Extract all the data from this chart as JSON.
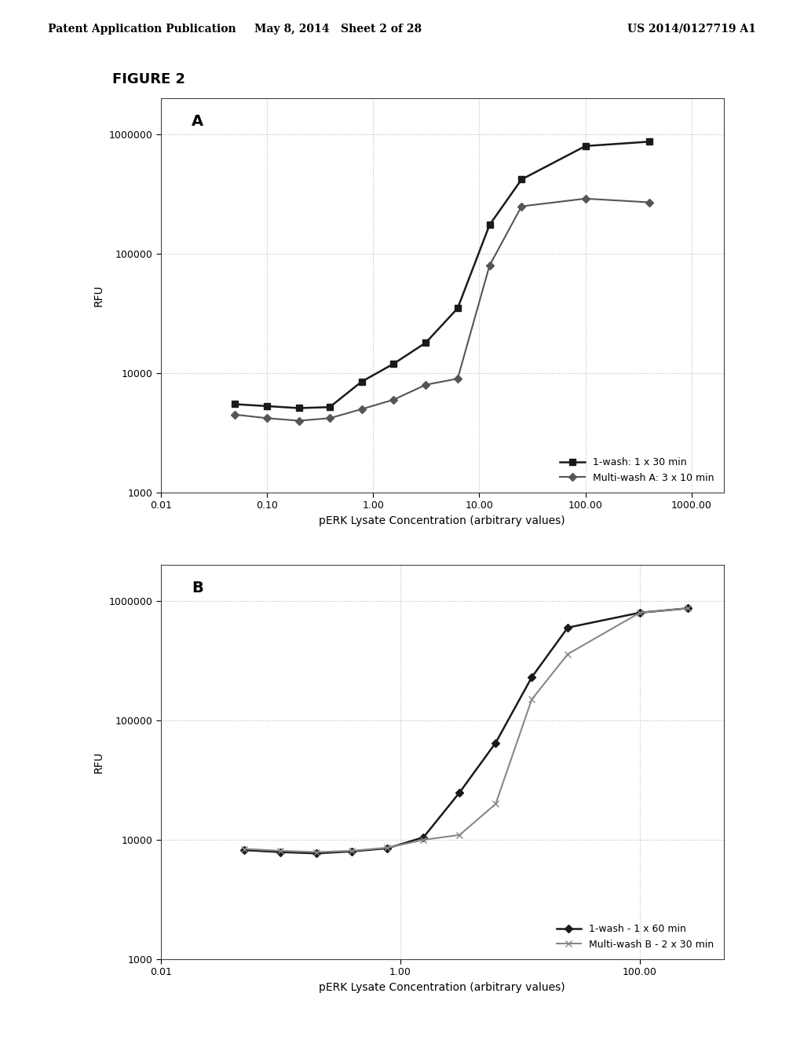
{
  "header_left": "Patent Application Publication",
  "header_mid": "May 8, 2014   Sheet 2 of 28",
  "header_right": "US 2014/0127719 A1",
  "figure_label": "FIGURE 2",
  "plot_A": {
    "label": "A",
    "series1": {
      "x": [
        0.05,
        0.1,
        0.2,
        0.39,
        0.78,
        1.56,
        3.13,
        6.25,
        12.5,
        25.0,
        100.0,
        400.0
      ],
      "y": [
        5500,
        5300,
        5100,
        5200,
        8500,
        12000,
        18000,
        35000,
        175000,
        420000,
        800000,
        870000
      ],
      "label": "1-wash: 1 x 30 min",
      "color": "#1a1a1a",
      "marker": "s",
      "markersize": 6,
      "linestyle": "-",
      "linewidth": 1.8
    },
    "series2": {
      "x": [
        0.05,
        0.1,
        0.2,
        0.39,
        0.78,
        1.56,
        3.13,
        6.25,
        12.5,
        25.0,
        100.0,
        400.0
      ],
      "y": [
        4500,
        4200,
        4000,
        4200,
        5000,
        6000,
        8000,
        9000,
        80000,
        250000,
        290000,
        270000
      ],
      "label": "Multi-wash A: 3 x 10 min",
      "color": "#555555",
      "marker": "D",
      "markersize": 5,
      "linestyle": "-",
      "linewidth": 1.5
    },
    "xlabel": "pERK Lysate Concentration (arbitrary values)",
    "ylabel": "RFU",
    "xlim_log": [
      -2,
      3.3
    ],
    "ylim": [
      1000,
      2000000
    ],
    "xticks": [
      0.01,
      0.1,
      1.0,
      10.0,
      100.0,
      1000.0
    ],
    "xticklabels": [
      "0.01",
      "0.10",
      "1.00",
      "10.00",
      "100.00",
      "1000.00"
    ],
    "yticks": [
      1000,
      10000,
      100000,
      1000000
    ],
    "yticklabels": [
      "1000",
      "10000",
      "100000",
      "1000000"
    ]
  },
  "plot_B": {
    "label": "B",
    "series1": {
      "x": [
        0.05,
        0.1,
        0.2,
        0.39,
        0.78,
        1.56,
        3.13,
        6.25,
        12.5,
        25.0,
        100.0,
        250.0
      ],
      "y": [
        8200,
        7900,
        7700,
        8000,
        8500,
        10500,
        25000,
        65000,
        230000,
        600000,
        800000,
        870000
      ],
      "label": "1-wash - 1 x 60 min",
      "color": "#1a1a1a",
      "marker": "D",
      "markersize": 5,
      "linestyle": "-",
      "linewidth": 1.8
    },
    "series2": {
      "x": [
        0.05,
        0.1,
        0.2,
        0.39,
        0.78,
        1.56,
        3.13,
        6.25,
        12.5,
        25.0,
        100.0,
        250.0
      ],
      "y": [
        8400,
        8100,
        7900,
        8100,
        8600,
        10000,
        11000,
        20000,
        150000,
        360000,
        800000,
        870000
      ],
      "label": "Multi-wash B - 2 x 30 min",
      "color": "#888888",
      "marker": "x",
      "markersize": 6,
      "linestyle": "-",
      "linewidth": 1.5
    },
    "xlabel": "pERK Lysate Concentration (arbitrary values)",
    "ylabel": "RFU",
    "xlim": [
      0.02,
      500.0
    ],
    "ylim": [
      1000,
      2000000
    ],
    "xticks": [
      0.01,
      1.0,
      100.0
    ],
    "xticklabels": [
      "0.01",
      "1.00",
      "100.00"
    ],
    "yticks": [
      1000,
      10000,
      100000,
      1000000
    ],
    "yticklabels": [
      "1000",
      "10000",
      "100000",
      "1000000"
    ]
  },
  "bg_color": "#ffffff",
  "text_color": "#000000",
  "grid_color": "#bbbbbb",
  "grid_style": ":",
  "font_size": 9,
  "label_font_size": 10,
  "panel_font_size": 14,
  "header_font_size": 10,
  "figure_label_size": 13
}
